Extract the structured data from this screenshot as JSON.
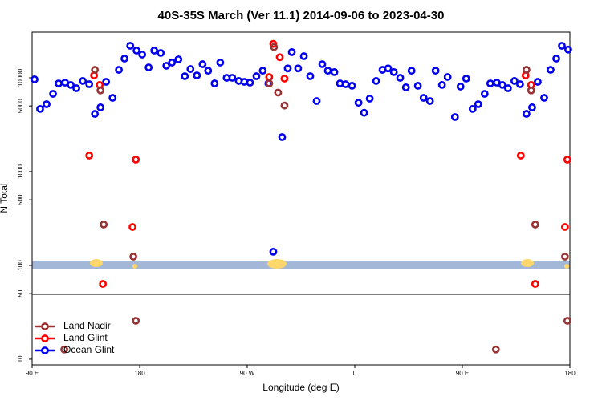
{
  "chart_data": {
    "type": "scatter",
    "title": "40S-35S March (Ver 11.1)   2014-09-06 to 2023-04-30",
    "xlabel": "Longitude (deg E)",
    "ylabel": "N Total",
    "log_y": true,
    "legend": "bottom-left",
    "xlim": [
      90,
      540
    ],
    "ylim": [
      8.7,
      30700
    ],
    "xticks": [
      {
        "value": 90,
        "label": "90 E"
      },
      {
        "value": 180,
        "label": "180"
      },
      {
        "value": 270,
        "label": "90 W"
      },
      {
        "value": 360,
        "label": "0"
      },
      {
        "value": 450,
        "label": "90 E"
      },
      {
        "value": 540,
        "label": "180"
      }
    ],
    "yticks": [
      10,
      50,
      100,
      500,
      1000,
      5000,
      10000
    ],
    "series": [
      {
        "name": "Ocean Glint",
        "color": "#0000ee",
        "x": [
          92.0,
          96.7,
          102.1,
          107.5,
          112.2,
          117.6,
          122.3,
          127.0,
          132.4,
          137.8,
          142.5,
          147.2,
          151.9,
          157.3,
          162.6,
          167.3,
          172.1,
          177.4,
          182.1,
          187.5,
          192.2,
          197.6,
          202.3,
          207.0,
          212.4,
          217.8,
          222.5,
          227.9,
          232.6,
          237.3,
          242.7,
          247.4,
          252.8,
          257.5,
          262.9,
          267.6,
          272.3,
          277.7,
          283.0,
          287.7,
          291.8,
          299.2,
          303.9,
          307.3,
          312.6,
          317.4,
          322.7,
          328.1,
          332.8,
          337.5,
          342.9,
          347.6,
          352.3,
          357.7,
          363.1,
          367.8,
          372.5,
          377.9,
          383.2,
          387.9,
          392.7,
          398.0,
          402.8,
          407.5,
          412.8,
          417.6,
          422.9,
          427.6,
          433.0,
          437.7,
          443.8,
          448.5,
          453.2,
          458.6,
          463.3,
          468.7,
          473.4,
          478.8,
          483.5,
          488.2,
          493.6,
          498.3,
          503.7,
          508.4,
          513.1,
          518.5,
          523.9,
          528.6,
          533.3,
          538.6
        ],
        "values": [
          9620,
          4650,
          5220,
          6740,
          8710,
          8880,
          8390,
          7740,
          9250,
          8540,
          4120,
          4830,
          9060,
          6110,
          12160,
          16030,
          21960,
          19530,
          17710,
          12900,
          19530,
          18400,
          13440,
          14540,
          15730,
          10400,
          12400,
          10600,
          13960,
          11900,
          8710,
          14540,
          10000,
          10000,
          9250,
          9060,
          8880,
          10400,
          11900,
          8710,
          140,
          2330,
          12600,
          18800,
          12600,
          17000,
          10400,
          5650,
          13960,
          11900,
          11500,
          8710,
          8540,
          8220,
          5410,
          4230,
          6000,
          9250,
          12160,
          12600,
          11500,
          10000,
          7900,
          11900,
          8220,
          6110,
          5650,
          11900,
          8390,
          10200,
          3810,
          8060,
          9800,
          4650,
          5220,
          6740,
          8710,
          8880,
          8390,
          7740,
          9250,
          8540,
          4120,
          4830,
          9060,
          6110,
          12160,
          16030,
          21960,
          20000
        ]
      },
      {
        "name": "Land Glint",
        "color": "#ff0000",
        "x": [
          137.8,
          141.8,
          146.5,
          176.8,
          174.0,
          149.2,
          291.8,
          297.2,
          301.2,
          288.4,
          498.9,
          502.9,
          507.6,
          537.9,
          535.9,
          511.0
        ],
        "values": [
          1483,
          10600,
          8390,
          1343,
          257,
          63.5,
          23000,
          16600,
          9800,
          10200,
          1483,
          10600,
          8390,
          1343,
          257,
          63.5
        ]
      },
      {
        "name": "Land Nadir",
        "color": "#993333",
        "x": [
          142.5,
          147.2,
          149.9,
          174.7,
          176.8,
          116.9,
          292.4,
          295.8,
          301.2,
          288.4,
          503.7,
          507.6,
          511.0,
          535.9,
          537.9,
          478.1
        ],
        "values": [
          12160,
          7330,
          273,
          124,
          25.7,
          12.7,
          21300,
          6950,
          5050,
          8710,
          12160,
          7330,
          273,
          124,
          25.7,
          12.7
        ]
      }
    ]
  }
}
